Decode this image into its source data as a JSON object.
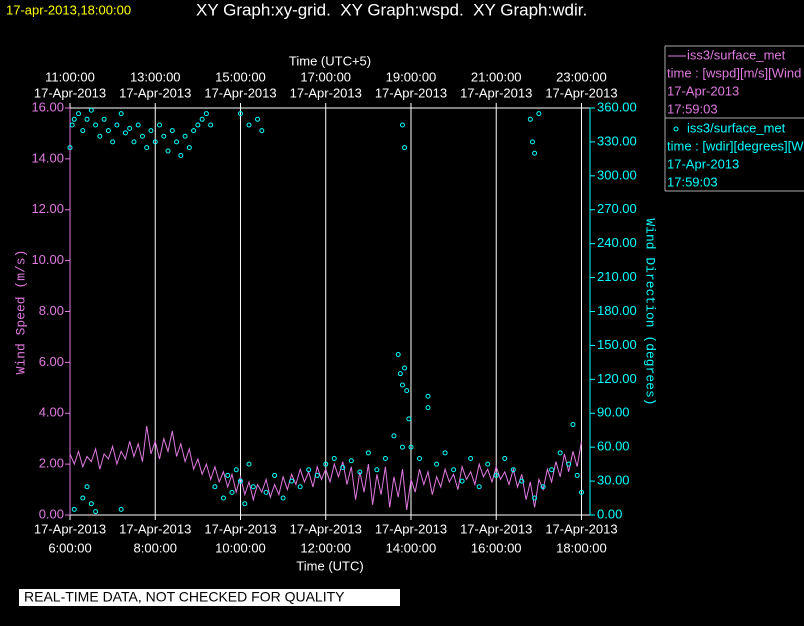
{
  "chart_data": {
    "type": "xy",
    "title": "17-apr-2013,18:00:00",
    "subtitle": "XY Graph:xy-grid.  XY Graph:wspd.  XY Graph:wdir.",
    "xlabel": "Time (UTC)",
    "x2label": "Time (UTC+5)",
    "ylabel": "Wind Speed (m/s)",
    "y2label": "Wind Direction (degrees)",
    "footer": "REAL-TIME DATA, NOT CHECKED FOR QUALITY",
    "grid": true,
    "xlim": [
      6,
      18.2
    ],
    "xticks": [
      {
        "value": 6,
        "label": "6:00:00",
        "date": "17-Apr-2013"
      },
      {
        "value": 8,
        "label": "8:00:00",
        "date": "17-Apr-2013"
      },
      {
        "value": 10,
        "label": "10:00:00",
        "date": "17-Apr-2013"
      },
      {
        "value": 12,
        "label": "12:00:00",
        "date": "17-Apr-2013"
      },
      {
        "value": 14,
        "label": "14:00:00",
        "date": "17-Apr-2013"
      },
      {
        "value": 16,
        "label": "16:00:00",
        "date": "17-Apr-2013"
      },
      {
        "value": 18,
        "label": "18:00:00",
        "date": "17-Apr-2013"
      }
    ],
    "x2ticks": [
      {
        "value": 6,
        "label": "11:00:00",
        "date": "17-Apr-2013"
      },
      {
        "value": 8,
        "label": "13:00:00",
        "date": "17-Apr-2013"
      },
      {
        "value": 10,
        "label": "15:00:00",
        "date": "17-Apr-2013"
      },
      {
        "value": 12,
        "label": "17:00:00",
        "date": "17-Apr-2013"
      },
      {
        "value": 14,
        "label": "19:00:00",
        "date": "17-Apr-2013"
      },
      {
        "value": 16,
        "label": "21:00:00",
        "date": "17-Apr-2013"
      },
      {
        "value": 18,
        "label": "23:00:00",
        "date": "17-Apr-2013"
      }
    ],
    "ylim": [
      0,
      16
    ],
    "yticks": [
      {
        "value": 0,
        "label": "0.00"
      },
      {
        "value": 2,
        "label": "2.00"
      },
      {
        "value": 4,
        "label": "4.00"
      },
      {
        "value": 6,
        "label": "6.00"
      },
      {
        "value": 8,
        "label": "8.00"
      },
      {
        "value": 10,
        "label": "10.00"
      },
      {
        "value": 12,
        "label": "12.00"
      },
      {
        "value": 14,
        "label": "14.00"
      },
      {
        "value": 16,
        "label": "16.00"
      }
    ],
    "y2lim": [
      0,
      360
    ],
    "y2ticks": [
      {
        "value": 0,
        "label": "0.00"
      },
      {
        "value": 30,
        "label": "30.00"
      },
      {
        "value": 60,
        "label": "60.00"
      },
      {
        "value": 90,
        "label": "90.00"
      },
      {
        "value": 120,
        "label": "120.00"
      },
      {
        "value": 150,
        "label": "150.00"
      },
      {
        "value": 180,
        "label": "180.00"
      },
      {
        "value": 210,
        "label": "210.00"
      },
      {
        "value": 240,
        "label": "240.00"
      },
      {
        "value": 270,
        "label": "270.00"
      },
      {
        "value": 300,
        "label": "300.00"
      },
      {
        "value": 330,
        "label": "330.00"
      },
      {
        "value": 360,
        "label": "360.00"
      }
    ],
    "series": [
      {
        "name": "iss3/surface_met",
        "legend_lines": [
          "time : [wspd][m/s][Wind",
          "17-Apr-2013",
          "17:59:03"
        ],
        "color": "#e07ae0",
        "style": "line",
        "axis": "y",
        "x": [
          6.0,
          6.1,
          6.2,
          6.3,
          6.4,
          6.5,
          6.6,
          6.7,
          6.8,
          6.9,
          7.0,
          7.1,
          7.2,
          7.3,
          7.4,
          7.5,
          7.6,
          7.7,
          7.8,
          7.9,
          8.0,
          8.1,
          8.2,
          8.3,
          8.4,
          8.5,
          8.6,
          8.7,
          8.8,
          8.9,
          9.0,
          9.1,
          9.2,
          9.3,
          9.4,
          9.5,
          9.6,
          9.7,
          9.8,
          9.9,
          10.0,
          10.1,
          10.2,
          10.3,
          10.4,
          10.5,
          10.6,
          10.7,
          10.8,
          10.9,
          11.0,
          11.1,
          11.2,
          11.3,
          11.4,
          11.5,
          11.6,
          11.7,
          11.8,
          11.9,
          12.0,
          12.1,
          12.2,
          12.3,
          12.4,
          12.5,
          12.6,
          12.7,
          12.8,
          12.9,
          13.0,
          13.1,
          13.2,
          13.3,
          13.4,
          13.5,
          13.6,
          13.7,
          13.8,
          13.9,
          14.0,
          14.1,
          14.2,
          14.3,
          14.4,
          14.5,
          14.6,
          14.7,
          14.8,
          14.9,
          15.0,
          15.1,
          15.2,
          15.3,
          15.4,
          15.5,
          15.6,
          15.7,
          15.8,
          15.9,
          16.0,
          16.1,
          16.2,
          16.3,
          16.4,
          16.5,
          16.6,
          16.7,
          16.8,
          16.9,
          17.0,
          17.1,
          17.2,
          17.3,
          17.4,
          17.5,
          17.6,
          17.7,
          17.8,
          17.9,
          18.0
        ],
        "values": [
          2.4,
          2.0,
          2.5,
          1.9,
          2.3,
          2.1,
          2.6,
          1.8,
          2.4,
          2.2,
          2.7,
          2.0,
          2.5,
          2.2,
          2.9,
          2.3,
          2.8,
          2.1,
          3.5,
          2.4,
          2.9,
          2.2,
          3.0,
          2.5,
          3.3,
          2.3,
          2.8,
          2.1,
          2.6,
          1.8,
          2.2,
          1.6,
          2.0,
          1.4,
          1.9,
          1.3,
          1.7,
          1.1,
          1.6,
          0.9,
          1.5,
          0.8,
          1.3,
          0.6,
          1.2,
          0.9,
          1.4,
          0.7,
          1.2,
          0.8,
          1.5,
          1.0,
          1.6,
          1.2,
          1.8,
          1.3,
          1.7,
          1.1,
          1.9,
          1.4,
          1.8,
          1.3,
          2.0,
          1.5,
          2.1,
          1.2,
          1.9,
          0.6,
          1.7,
          0.9,
          2.0,
          0.4,
          1.6,
          0.8,
          1.9,
          0.3,
          1.5,
          0.7,
          1.8,
          0.2,
          1.4,
          0.9,
          1.8,
          1.2,
          1.7,
          0.8,
          1.5,
          1.1,
          1.8,
          1.3,
          1.6,
          1.0,
          1.9,
          1.4,
          1.7,
          1.2,
          2.0,
          1.5,
          1.8,
          1.3,
          1.9,
          1.4,
          1.7,
          1.2,
          1.8,
          1.1,
          1.6,
          0.6,
          1.3,
          0.3,
          1.4,
          1.0,
          1.8,
          1.3,
          2.1,
          1.5,
          2.4,
          1.7,
          2.5,
          1.9,
          2.9
        ]
      },
      {
        "name": "iss3/surface_met",
        "legend_lines": [
          "time : [wdir][degrees][W",
          "17-Apr-2013",
          "17:59:03"
        ],
        "color": "#00ffff",
        "style": "scatter",
        "axis": "y2",
        "x": [
          6.0,
          6.05,
          6.1,
          6.2,
          6.3,
          6.4,
          6.5,
          6.6,
          6.7,
          6.8,
          6.9,
          7.0,
          7.1,
          7.2,
          7.3,
          7.4,
          7.5,
          7.6,
          7.7,
          7.8,
          7.9,
          8.0,
          8.1,
          8.2,
          8.3,
          8.4,
          8.5,
          8.6,
          8.7,
          8.8,
          8.9,
          9.0,
          9.1,
          9.2,
          9.3,
          6.1,
          6.3,
          6.4,
          6.5,
          6.6,
          7.2,
          9.4,
          9.6,
          9.7,
          9.8,
          9.9,
          10.0,
          10.1,
          10.2,
          10.3,
          10.0,
          10.2,
          10.4,
          10.5,
          10.6,
          10.8,
          11.0,
          11.2,
          11.4,
          11.6,
          11.8,
          12.0,
          12.2,
          12.4,
          12.6,
          12.8,
          13.0,
          13.2,
          13.4,
          13.6,
          13.8,
          13.8,
          13.85,
          13.7,
          13.75,
          13.8,
          13.85,
          13.9,
          13.95,
          14.0,
          14.2,
          14.4,
          14.4,
          14.6,
          14.8,
          15.0,
          15.2,
          15.4,
          15.6,
          15.8,
          16.0,
          16.2,
          16.4,
          16.6,
          16.8,
          16.85,
          16.9,
          17.0,
          16.9,
          17.1,
          17.3,
          17.5,
          17.7,
          17.8,
          17.9,
          18.0
        ],
        "values": [
          325,
          345,
          350,
          355,
          340,
          350,
          358,
          345,
          335,
          350,
          340,
          330,
          345,
          355,
          338,
          342,
          330,
          345,
          335,
          325,
          340,
          330,
          345,
          335,
          322,
          340,
          330,
          318,
          335,
          325,
          340,
          345,
          350,
          355,
          345,
          5,
          15,
          25,
          10,
          3,
          5,
          25,
          15,
          35,
          20,
          40,
          30,
          10,
          45,
          25,
          355,
          345,
          350,
          340,
          20,
          35,
          15,
          30,
          25,
          40,
          35,
          45,
          50,
          42,
          48,
          38,
          55,
          40,
          50,
          70,
          60,
          345,
          325,
          142,
          125,
          115,
          130,
          110,
          85,
          60,
          50,
          95,
          105,
          45,
          55,
          40,
          30,
          50,
          25,
          45,
          35,
          50,
          40,
          30,
          350,
          330,
          320,
          355,
          15,
          25,
          40,
          55,
          45,
          80,
          35,
          20
        ]
      }
    ]
  }
}
